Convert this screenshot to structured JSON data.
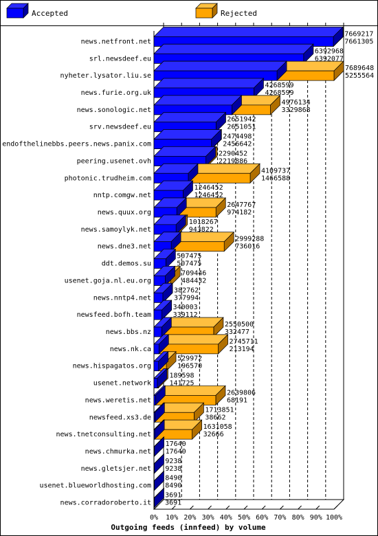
{
  "chart_data": {
    "type": "bar",
    "orientation": "horizontal",
    "stacked": "overlay",
    "title": "Outgoing feeds (innfeed) by volume",
    "legend_position": "top",
    "xlim": [
      0,
      100
    ],
    "x_ticks": [
      "0%",
      "10%",
      "20%",
      "30%",
      "40%",
      "50%",
      "60%",
      "70%",
      "80%",
      "90%",
      "100%"
    ],
    "max_value": 7689648,
    "series": [
      {
        "name": "Accepted",
        "color": "#0000ff",
        "side": "#0000a0",
        "top": "#2a2aff"
      },
      {
        "name": "Rejected",
        "color": "#ffa500",
        "side": "#b06f00",
        "top": "#ffc040"
      }
    ],
    "categories": [
      "news.netfront.net",
      "srl.newsdeef.eu",
      "nyheter.lysator.liu.se",
      "news.furie.org.uk",
      "news.sonologic.net",
      "srv.newsdeef.eu",
      "endofthelinebbs.peers.news.panix.com",
      "peering.usenet.ovh",
      "photonic.trudheim.com",
      "nntp.comgw.net",
      "news.quux.org",
      "news.samoylyk.net",
      "news.dne3.net",
      "ddt.demos.su",
      "usenet.goja.nl.eu.org",
      "news.nntp4.net",
      "newsfeed.bofh.team",
      "news.bbs.nz",
      "news.nk.ca",
      "news.hispagatos.org",
      "usenet.network",
      "news.weretis.net",
      "newsfeed.xs3.de",
      "news.tnetconsulting.net",
      "news.chmurka.net",
      "news.gletsjer.net",
      "usenet.blueworldhosting.com",
      "news.corradoroberto.it"
    ],
    "total": [
      7669217,
      6392968,
      7689648,
      4268599,
      4976134,
      2651942,
      2474498,
      2290452,
      4109737,
      1246452,
      2647767,
      1018267,
      2999288,
      507475,
      709446,
      382762,
      340003,
      2550500,
      2745711,
      529972,
      189598,
      2639806,
      1713851,
      1631058,
      17640,
      9238,
      8490,
      3691
    ],
    "accepted": [
      7661305,
      6392077,
      5255564,
      4268599,
      3329868,
      2651051,
      2456642,
      2219886,
      1466588,
      1246452,
      974182,
      943822,
      736016,
      507475,
      484432,
      377994,
      339112,
      332477,
      213194,
      196570,
      141725,
      68191,
      38662,
      32666,
      17640,
      9238,
      8490,
      3691
    ]
  }
}
